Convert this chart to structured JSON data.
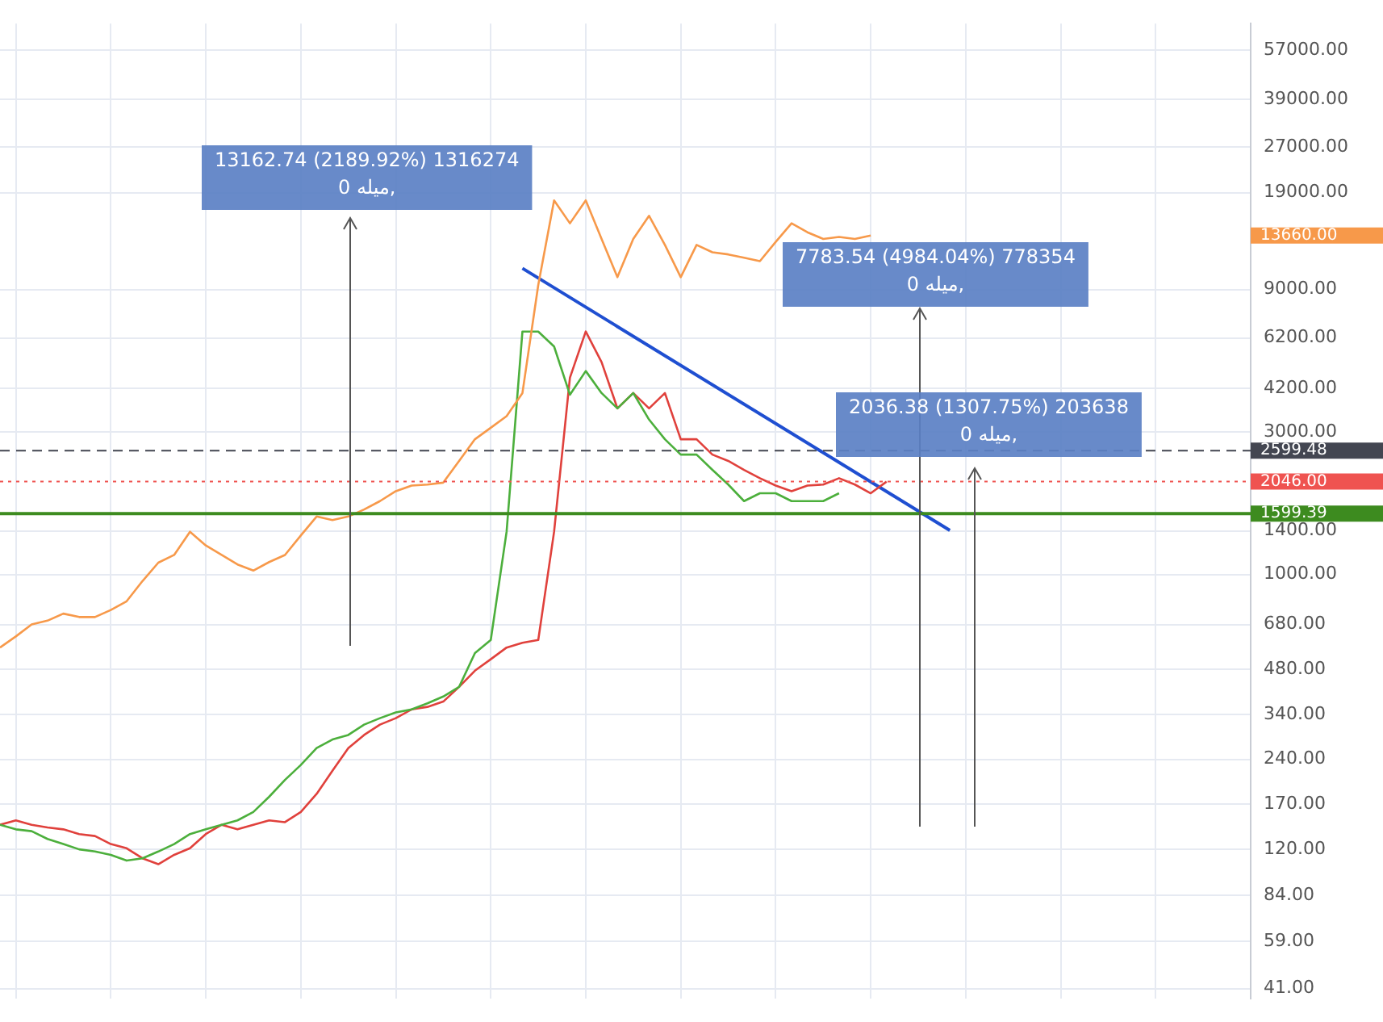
{
  "chart_data": {
    "type": "line",
    "categories": [
      null,
      null,
      null,
      null,
      null,
      null,
      null,
      null,
      null,
      null,
      null,
      null,
      null,
      null,
      null,
      null,
      null,
      null,
      null,
      null,
      null,
      null,
      null,
      null,
      null,
      null,
      null,
      null,
      null,
      null,
      null,
      null,
      null,
      null,
      null,
      null,
      null,
      null,
      null,
      null,
      null,
      null,
      null,
      null,
      null,
      null,
      null,
      null,
      null,
      null,
      null,
      null,
      null,
      null,
      null,
      null,
      null,
      null,
      null,
      null,
      null,
      null,
      null,
      null,
      null,
      null,
      null,
      null,
      null,
      null,
      null,
      null,
      null,
      null,
      null,
      null,
      null,
      null,
      null,
      null
    ],
    "series": [
      {
        "color": "#f7994a",
        "values": [
          569,
          620,
          680,
          700,
          739,
          720,
          720,
          760,
          813,
          950,
          1095,
          1162,
          1390,
          1250,
          1162,
          1080,
          1030,
          1100,
          1162,
          1350,
          1563,
          1520,
          1563,
          1650,
          1760,
          1900,
          1984,
          2000,
          2030,
          2400,
          2837,
          3100,
          3390,
          4050,
          9320,
          17900,
          15000,
          17900,
          13300,
          9900,
          13300,
          15900,
          12700,
          9900,
          12700,
          12000,
          11800,
          11500,
          11200,
          13000,
          15000,
          14000,
          13300,
          13500,
          13300,
          13660,
          null,
          null,
          null,
          null,
          null,
          null,
          null,
          null,
          null,
          null,
          null,
          null,
          null,
          null,
          null,
          null,
          null,
          null,
          null,
          null,
          null,
          null,
          null,
          null
        ]
      },
      {
        "color": "#4caf3c",
        "values": [
          145,
          140,
          138,
          130,
          125,
          120,
          118,
          115,
          110,
          112,
          118,
          125,
          135,
          140,
          145,
          150,
          160,
          180,
          205,
          230,
          262,
          280,
          290,
          314,
          330,
          345,
          353,
          370,
          390,
          420,
          545,
          603,
          1390,
          6510,
          6510,
          5800,
          4000,
          4800,
          4050,
          3600,
          4050,
          3300,
          2837,
          2520,
          2520,
          2240,
          2000,
          1760,
          1870,
          1870,
          1760,
          1760,
          1760,
          1870,
          null,
          null,
          null,
          null,
          null,
          null,
          null,
          null,
          null,
          null,
          null,
          null,
          null,
          null,
          null,
          null,
          null,
          null,
          null,
          null,
          null,
          null,
          null,
          null,
          null,
          null
        ]
      },
      {
        "color": "#e0413c",
        "values": [
          145,
          150,
          145,
          142,
          140,
          135,
          133,
          125,
          121,
          112,
          107,
          115,
          121,
          135,
          145,
          140,
          145,
          150,
          148,
          160,
          184,
          220,
          262,
          290,
          314,
          330,
          353,
          360,
          375,
          420,
          476,
          520,
          569,
          590,
          603,
          1390,
          4560,
          6510,
          5140,
          3600,
          4050,
          3600,
          4050,
          2837,
          2837,
          2520,
          2400,
          2240,
          2100,
          1984,
          1900,
          1984,
          2000,
          2100,
          2000,
          1870,
          2046,
          null,
          null,
          null,
          null,
          null,
          null,
          null,
          null,
          null,
          null,
          null,
          null,
          null,
          null,
          null,
          null,
          null,
          null,
          null,
          null,
          null,
          null,
          null
        ]
      },
      {
        "color": "#1f4fd1",
        "values": [
          null,
          null,
          null,
          null,
          null,
          null,
          null,
          null,
          null,
          null,
          null,
          null,
          null,
          null,
          null,
          null,
          null,
          null,
          null,
          null,
          null,
          null,
          null,
          null,
          null,
          null,
          null,
          null,
          null,
          null,
          null,
          null,
          null,
          10600,
          null,
          null,
          null,
          null,
          null,
          null,
          null,
          null,
          null,
          null,
          null,
          null,
          null,
          null,
          null,
          null,
          null,
          null,
          null,
          null,
          null,
          null,
          null,
          null,
          null,
          null,
          1405,
          null,
          null,
          null,
          null,
          null,
          null,
          null,
          null,
          null,
          null,
          null,
          null,
          null,
          null,
          null,
          null,
          null,
          null,
          null
        ]
      }
    ],
    "log": true,
    "ylim": [
      38,
      70000
    ],
    "yticks": [
      {
        "value": 41,
        "label": "41.00"
      },
      {
        "value": 59,
        "label": "59.00"
      },
      {
        "value": 84,
        "label": "84.00"
      },
      {
        "value": 120,
        "label": "120.00"
      },
      {
        "value": 170,
        "label": "170.00"
      },
      {
        "value": 240,
        "label": "240.00"
      },
      {
        "value": 340,
        "label": "340.00"
      },
      {
        "value": 480,
        "label": "480.00"
      },
      {
        "value": 680,
        "label": "680.00"
      },
      {
        "value": 1000,
        "label": "1000.00"
      },
      {
        "value": 1400,
        "label": "1400.00"
      },
      {
        "value": 3000,
        "label": "3000.00"
      },
      {
        "value": 4200,
        "label": "4200.00"
      },
      {
        "value": 6200,
        "label": "6200.00"
      },
      {
        "value": 9000,
        "label": "9000.00"
      },
      {
        "value": 19000,
        "label": "19000.00"
      },
      {
        "value": 27000,
        "label": "27000.00"
      },
      {
        "value": 39000,
        "label": "39000.00"
      },
      {
        "value": 57000,
        "label": "57000.00"
      }
    ],
    "tick_labels": "y",
    "grid": true,
    "legend": false,
    "marker": "none",
    "ref_lines": [
      {
        "axis": "y",
        "value": 2599.48,
        "label": "2599.48",
        "color": "#434651",
        "line_style": "dashed"
      },
      {
        "axis": "y",
        "value": 2046,
        "label": "2046.00",
        "color": "#ef5350",
        "line_style": "dotted"
      },
      {
        "axis": "y",
        "value": 1599.39,
        "label": "1599.39",
        "color": "#3d8b1f",
        "line_style": "solid"
      }
    ],
    "annotations": [
      "13162.74 (2189.92%) 1316274\nمیله 0,",
      "7783.54 (4984.04%) 778354\nمیله 0,",
      "2036.38 (1307.75%) 203638\nمیله 0,",
      "13660.00"
    ]
  }
}
